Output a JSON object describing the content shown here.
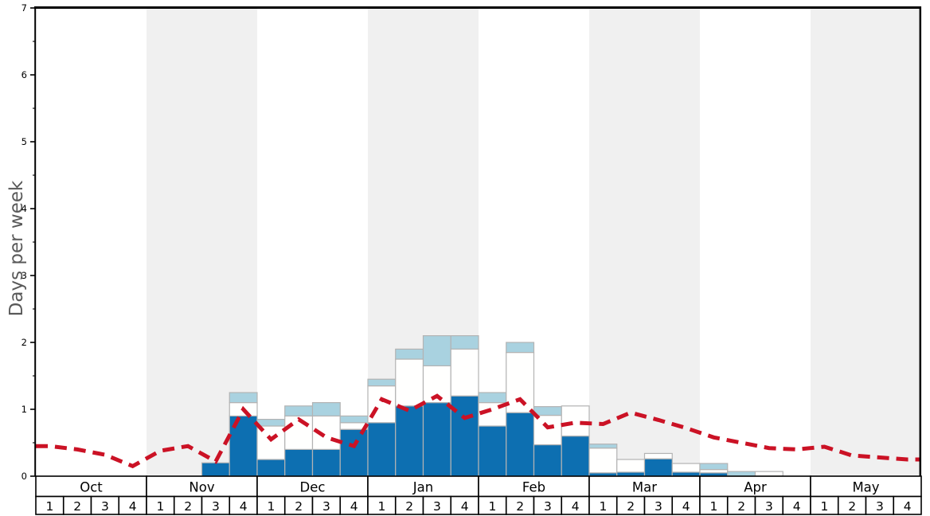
{
  "chart_data": {
    "type": "bar",
    "title": "",
    "ylabel": "Days per week",
    "ylim": [
      0,
      7
    ],
    "y_major_ticks": [
      0,
      1,
      2,
      3,
      4,
      5,
      6,
      7
    ],
    "y_minor_step": 0.5,
    "grid": "off",
    "legend": "none",
    "months": [
      "Oct",
      "Nov",
      "Dec",
      "Jan",
      "Feb",
      "Mar",
      "Apr",
      "May"
    ],
    "weeks_per_month": 4,
    "week_labels": [
      "1",
      "2",
      "3",
      "4"
    ],
    "shaded_months": [
      "Nov",
      "Jan",
      "Mar",
      "May"
    ],
    "stacking": "stacked bar segments per week, bottom-to-top: dark-blue, white, light-blue",
    "series": [
      {
        "name": "dark-blue-days",
        "color": "#0d6fb1",
        "values": [
          0,
          0,
          0,
          0,
          0,
          0,
          0.2,
          0.9,
          0.25,
          0.4,
          0.4,
          0.7,
          0.8,
          1.05,
          1.1,
          1.2,
          0.75,
          0.95,
          0.47,
          0.6,
          0.05,
          0.06,
          0.26,
          0.06,
          0.05,
          0,
          0,
          0,
          0,
          0,
          0,
          0
        ]
      },
      {
        "name": "white-days",
        "color": "#fffffe",
        "values": [
          0,
          0,
          0,
          0,
          0,
          0,
          0,
          0.2,
          0.5,
          0.5,
          0.5,
          0.1,
          0.55,
          0.7,
          0.55,
          0.7,
          0.35,
          0.9,
          0.44,
          0.45,
          0.37,
          0.19,
          0.08,
          0.13,
          0.05,
          0,
          0.07,
          0,
          0,
          0,
          0,
          0
        ]
      },
      {
        "name": "light-blue-days",
        "color": "#a9d2e0",
        "values": [
          0,
          0,
          0,
          0,
          0,
          0,
          0,
          0.15,
          0.1,
          0.15,
          0.2,
          0.1,
          0.1,
          0.15,
          0.45,
          0.2,
          0.15,
          0.15,
          0.13,
          0,
          0.06,
          0,
          0,
          0,
          0.09,
          0.07,
          0,
          0,
          0,
          0,
          0,
          0
        ]
      }
    ],
    "line": {
      "name": "red-dashed-trend-line",
      "style": "dashed",
      "color": "#cb1225",
      "values": [
        0.45,
        0.4,
        0.32,
        0.15,
        0.38,
        0.45,
        0.22,
        1.0,
        0.55,
        0.85,
        0.58,
        0.45,
        1.15,
        0.98,
        1.2,
        0.87,
        1.0,
        1.15,
        0.73,
        0.8,
        0.78,
        0.95,
        0.84,
        0.72,
        0.58,
        0.5,
        0.42,
        0.4,
        0.44,
        0.31,
        0.28,
        0.25
      ]
    },
    "colors": {
      "band": "#f0f0f0",
      "bar_border": "#b3b3b3",
      "axis": "#000000",
      "cell_fill": "#ffffff",
      "label_text": "#000000",
      "ylabel_text": "#595959"
    }
  }
}
